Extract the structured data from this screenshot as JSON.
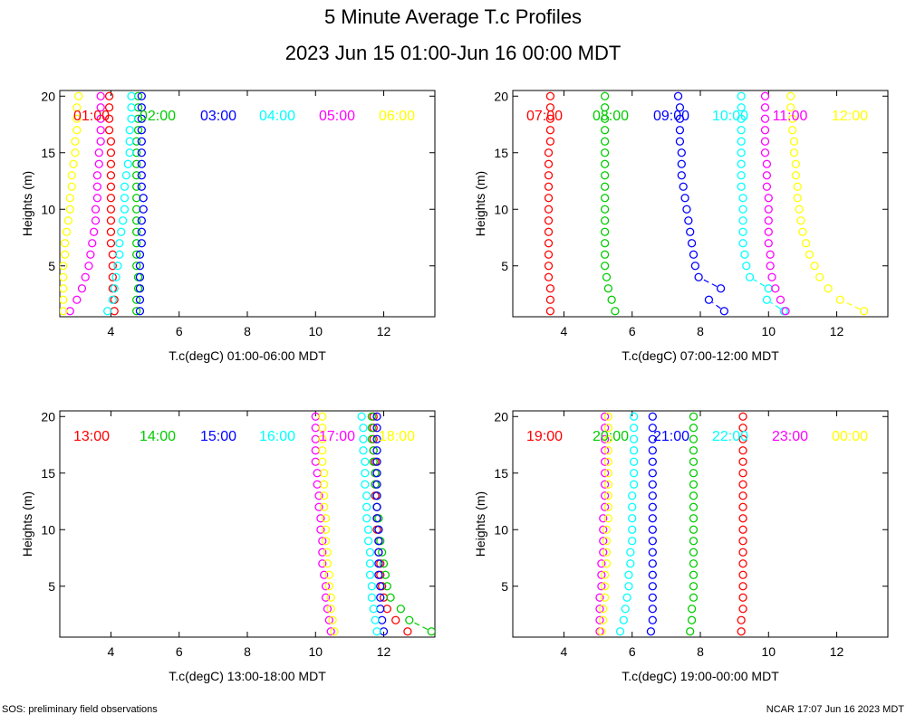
{
  "title": "5 Minute Average T.c Profiles",
  "subtitle": "2023 Jun 15 01:00-Jun 16 00:00 MDT",
  "footer_left": "SOS: preliminary field observations",
  "footer_right": "NCAR 17:07 Jun 16 2023 MDT",
  "colors": [
    "#ff0000",
    "#00cc00",
    "#0000ff",
    "#00ffff",
    "#ff00ff",
    "#ffff00"
  ],
  "heights": [
    1,
    2,
    3,
    4,
    5,
    6,
    7,
    8,
    9,
    10,
    11,
    12,
    13,
    14,
    15,
    16,
    17,
    18,
    19,
    20
  ],
  "chart_data": [
    {
      "type": "scatter",
      "xlabel": "T.c(degC) 01:00-06:00 MDT",
      "ylabel": "Heights (m)",
      "xlim": [
        2.5,
        13.5
      ],
      "ylim": [
        0.5,
        20.5
      ],
      "xticks": [
        4,
        6,
        8,
        10,
        12
      ],
      "yticks": [
        5,
        10,
        15,
        20
      ],
      "series": [
        {
          "name": "01:00",
          "x": [
            4.1,
            4.1,
            4.05,
            4.05,
            4.05,
            4.05,
            4.0,
            4.0,
            4.0,
            4.0,
            4.0,
            4.0,
            4.0,
            4.0,
            4.0,
            4.0,
            3.95,
            3.95,
            3.95,
            3.95
          ]
        },
        {
          "name": "02:00",
          "x": [
            4.75,
            4.75,
            4.8,
            4.8,
            4.75,
            4.75,
            4.75,
            4.75,
            4.75,
            4.75,
            4.75,
            4.75,
            4.75,
            4.75,
            4.75,
            4.75,
            4.8,
            4.8,
            4.8,
            4.8
          ]
        },
        {
          "name": "03:00",
          "x": [
            4.85,
            4.85,
            4.85,
            4.85,
            4.85,
            4.85,
            4.9,
            4.9,
            4.9,
            4.95,
            4.95,
            4.9,
            4.9,
            4.9,
            4.9,
            4.9,
            4.9,
            4.9,
            4.9,
            4.9
          ]
        },
        {
          "name": "04:00",
          "x": [
            3.9,
            4.05,
            4.1,
            4.15,
            4.2,
            4.25,
            4.25,
            4.3,
            4.35,
            4.4,
            4.4,
            4.4,
            4.45,
            4.5,
            4.55,
            4.55,
            4.55,
            4.6,
            4.6,
            4.6
          ]
        },
        {
          "name": "05:00",
          "x": [
            2.8,
            3.0,
            3.15,
            3.25,
            3.35,
            3.4,
            3.45,
            3.5,
            3.55,
            3.55,
            3.6,
            3.6,
            3.6,
            3.65,
            3.65,
            3.7,
            3.7,
            3.7,
            3.7,
            3.7
          ]
        },
        {
          "name": "06:00",
          "x": [
            2.6,
            2.6,
            2.6,
            2.6,
            2.6,
            2.65,
            2.65,
            2.7,
            2.75,
            2.8,
            2.8,
            2.85,
            2.85,
            2.9,
            2.95,
            2.95,
            3.0,
            3.0,
            3.0,
            3.05
          ]
        }
      ]
    },
    {
      "type": "scatter",
      "xlabel": "T.c(degC) 07:00-12:00 MDT",
      "ylabel": "Heights (m)",
      "xlim": [
        2.5,
        13.5
      ],
      "ylim": [
        0.5,
        20.5
      ],
      "xticks": [
        4,
        6,
        8,
        10,
        12
      ],
      "yticks": [
        5,
        10,
        15,
        20
      ],
      "series": [
        {
          "name": "07:00",
          "x": [
            3.6,
            3.6,
            3.6,
            3.55,
            3.55,
            3.55,
            3.55,
            3.55,
            3.55,
            3.55,
            3.55,
            3.55,
            3.55,
            3.55,
            3.55,
            3.6,
            3.6,
            3.6,
            3.6,
            3.6
          ]
        },
        {
          "name": "08:00",
          "x": [
            5.5,
            5.4,
            5.3,
            5.25,
            5.2,
            5.2,
            5.2,
            5.2,
            5.2,
            5.2,
            5.2,
            5.2,
            5.2,
            5.2,
            5.2,
            5.2,
            5.2,
            5.2,
            5.2,
            5.2
          ]
        },
        {
          "name": "09:00",
          "x": [
            8.7,
            8.25,
            8.6,
            7.95,
            7.85,
            7.8,
            7.75,
            7.7,
            7.65,
            7.6,
            7.55,
            7.5,
            7.45,
            7.45,
            7.45,
            7.4,
            7.4,
            7.4,
            7.4,
            7.35
          ]
        },
        {
          "name": "10:00",
          "x": [
            10.45,
            9.95,
            10.0,
            9.45,
            9.35,
            9.3,
            9.25,
            9.25,
            9.25,
            9.25,
            9.25,
            9.2,
            9.2,
            9.2,
            9.2,
            9.2,
            9.2,
            9.2,
            9.2,
            9.2
          ]
        },
        {
          "name": "11:00",
          "x": [
            10.5,
            10.35,
            10.2,
            10.1,
            10.05,
            10.05,
            10.0,
            10.0,
            10.0,
            10.0,
            10.0,
            9.95,
            9.95,
            9.95,
            9.9,
            9.9,
            9.9,
            9.9,
            9.9,
            9.9
          ]
        },
        {
          "name": "12:00",
          "x": [
            12.8,
            12.1,
            11.75,
            11.5,
            11.35,
            11.2,
            11.1,
            11.0,
            10.95,
            10.9,
            10.85,
            10.85,
            10.8,
            10.8,
            10.75,
            10.75,
            10.7,
            10.7,
            10.65,
            10.65
          ]
        }
      ]
    },
    {
      "type": "scatter",
      "xlabel": "T.c(degC) 13:00-18:00 MDT",
      "ylabel": "Heights (m)",
      "xlim": [
        2.5,
        13.5
      ],
      "ylim": [
        0.5,
        20.5
      ],
      "xticks": [
        4,
        6,
        8,
        10,
        12
      ],
      "yticks": [
        5,
        10,
        15,
        20
      ],
      "series": [
        {
          "name": "13:00",
          "x": [
            12.7,
            12.35,
            12.1,
            12.0,
            11.95,
            11.9,
            11.9,
            11.85,
            11.85,
            11.8,
            11.8,
            11.8,
            11.75,
            11.75,
            11.75,
            11.75,
            11.7,
            11.7,
            11.7,
            11.7
          ]
        },
        {
          "name": "14:00",
          "x": [
            13.4,
            12.75,
            12.5,
            12.2,
            12.1,
            12.05,
            12.0,
            11.95,
            11.9,
            11.85,
            11.85,
            11.8,
            11.8,
            11.75,
            11.75,
            11.7,
            11.7,
            11.65,
            11.65,
            11.65
          ]
        },
        {
          "name": "15:00",
          "x": [
            12.0,
            11.95,
            11.9,
            11.9,
            11.9,
            11.85,
            11.85,
            11.85,
            11.85,
            11.85,
            11.8,
            11.8,
            11.8,
            11.8,
            11.8,
            11.8,
            11.8,
            11.8,
            11.8,
            11.8
          ]
        },
        {
          "name": "16:00",
          "x": [
            11.8,
            11.75,
            11.7,
            11.65,
            11.65,
            11.6,
            11.6,
            11.6,
            11.55,
            11.55,
            11.5,
            11.5,
            11.5,
            11.45,
            11.45,
            11.45,
            11.4,
            11.4,
            11.4,
            11.35
          ]
        },
        {
          "name": "17:00",
          "x": [
            10.45,
            10.4,
            10.35,
            10.3,
            10.3,
            10.25,
            10.2,
            10.2,
            10.2,
            10.15,
            10.15,
            10.1,
            10.1,
            10.05,
            10.05,
            10.0,
            10.0,
            10.0,
            10.0,
            10.0
          ]
        },
        {
          "name": "18:00",
          "x": [
            10.55,
            10.5,
            10.45,
            10.45,
            10.4,
            10.4,
            10.35,
            10.35,
            10.3,
            10.3,
            10.3,
            10.25,
            10.25,
            10.25,
            10.25,
            10.2,
            10.2,
            10.2,
            10.2,
            10.2
          ]
        }
      ]
    },
    {
      "type": "scatter",
      "xlabel": "T.c(degC) 19:00-00:00 MDT",
      "ylabel": "Heights (m)",
      "xlim": [
        2.5,
        13.5
      ],
      "ylim": [
        0.5,
        20.5
      ],
      "xticks": [
        4,
        6,
        8,
        10,
        12
      ],
      "yticks": [
        5,
        10,
        15,
        20
      ],
      "series": [
        {
          "name": "19:00",
          "x": [
            9.2,
            9.2,
            9.25,
            9.25,
            9.25,
            9.25,
            9.25,
            9.25,
            9.25,
            9.25,
            9.25,
            9.25,
            9.25,
            9.25,
            9.25,
            9.25,
            9.25,
            9.25,
            9.25,
            9.25
          ]
        },
        {
          "name": "20:00",
          "x": [
            7.7,
            7.75,
            7.75,
            7.8,
            7.8,
            7.8,
            7.8,
            7.8,
            7.8,
            7.8,
            7.8,
            7.8,
            7.8,
            7.8,
            7.8,
            7.8,
            7.8,
            7.8,
            7.8,
            7.8
          ]
        },
        {
          "name": "21:00",
          "x": [
            6.55,
            6.6,
            6.6,
            6.6,
            6.6,
            6.6,
            6.6,
            6.6,
            6.6,
            6.6,
            6.6,
            6.6,
            6.6,
            6.6,
            6.6,
            6.6,
            6.6,
            6.6,
            6.6,
            6.6
          ]
        },
        {
          "name": "22:00",
          "x": [
            5.65,
            5.75,
            5.8,
            5.85,
            5.9,
            5.9,
            5.95,
            5.95,
            6.0,
            6.0,
            6.0,
            6.0,
            6.0,
            6.05,
            6.05,
            6.05,
            6.05,
            6.05,
            6.05,
            6.05
          ]
        },
        {
          "name": "23:00",
          "x": [
            5.05,
            5.05,
            5.05,
            5.05,
            5.1,
            5.1,
            5.1,
            5.15,
            5.15,
            5.15,
            5.15,
            5.2,
            5.2,
            5.2,
            5.2,
            5.2,
            5.2,
            5.2,
            5.2,
            5.2
          ]
        },
        {
          "name": "00:00",
          "x": [
            5.1,
            5.15,
            5.15,
            5.2,
            5.2,
            5.2,
            5.25,
            5.25,
            5.25,
            5.25,
            5.3,
            5.3,
            5.3,
            5.3,
            5.3,
            5.3,
            5.3,
            5.3,
            5.3,
            5.3
          ]
        }
      ]
    }
  ]
}
